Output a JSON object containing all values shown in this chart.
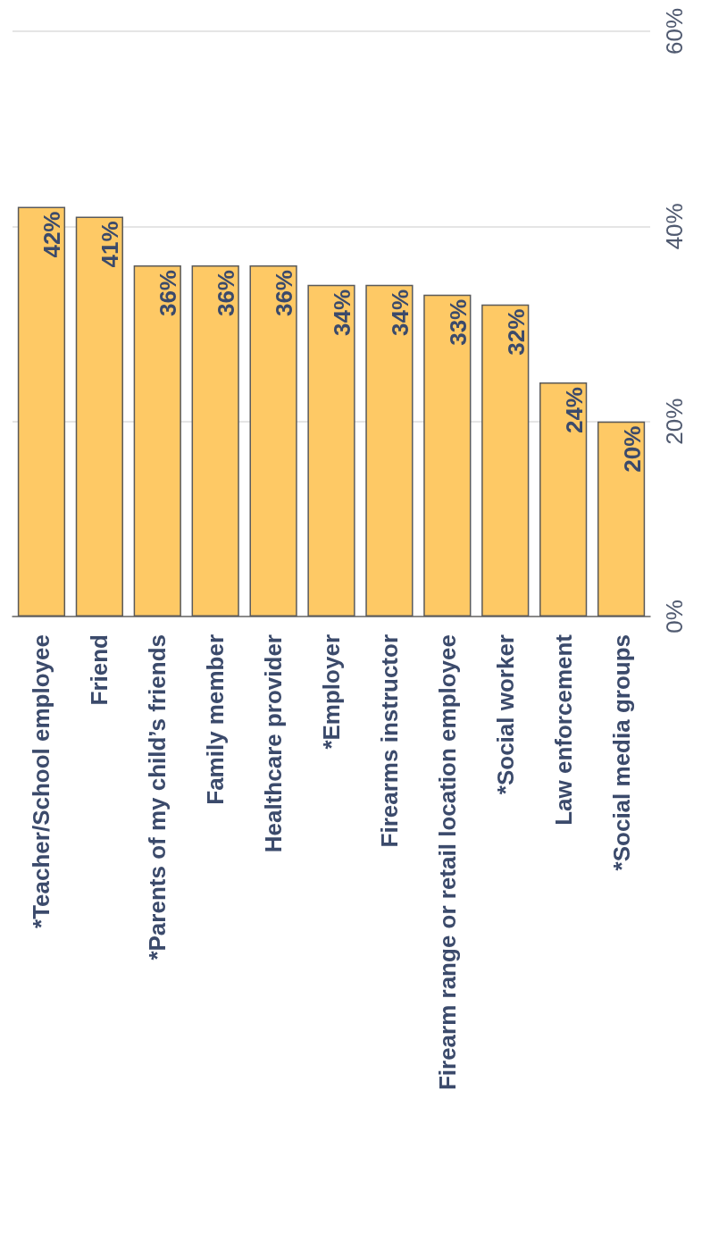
{
  "chart_data": {
    "type": "bar",
    "categories": [
      "*Teacher/School employee",
      "Friend",
      "*Parents of my child’s friends",
      "Family member",
      "Healthcare provider",
      "*Employer",
      "Firearms instructor",
      "Firearm range or retail location employee",
      "*Social worker",
      "Law enforcement",
      "*Social media groups"
    ],
    "values": [
      42,
      41,
      36,
      36,
      36,
      34,
      34,
      33,
      32,
      24,
      20
    ],
    "value_labels": [
      "42%",
      "41%",
      "36%",
      "36%",
      "36%",
      "34%",
      "34%",
      "33%",
      "32%",
      "24%",
      "20%"
    ],
    "color": "#fec965",
    "ylim": [
      0,
      60
    ],
    "yticks": [
      {
        "value": 0,
        "label": "0%"
      },
      {
        "value": 20,
        "label": "20%"
      },
      {
        "value": 40,
        "label": "40%"
      },
      {
        "value": 60,
        "label": "60%"
      }
    ],
    "grid": "y"
  }
}
